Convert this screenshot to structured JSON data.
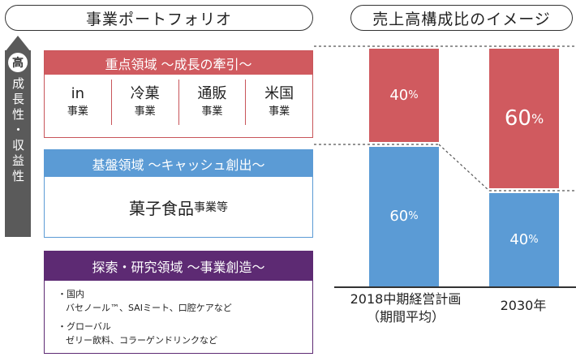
{
  "left_header": "事業ポートフォリオ",
  "right_header": "売上高構成比のイメージ",
  "axis": {
    "top": "高",
    "label": "成長性・収益性"
  },
  "sections": {
    "priority": {
      "title": "重点領域 ～成長の牽引～",
      "businesses": [
        {
          "name": "in",
          "suffix": "事業"
        },
        {
          "name": "冷菓",
          "suffix": "事業"
        },
        {
          "name": "通販",
          "suffix": "事業"
        },
        {
          "name": "米国",
          "suffix": "事業"
        }
      ],
      "color": "#d05a5f"
    },
    "base": {
      "title": "基盤領域 ～キャッシュ創出～",
      "main": "菓子食品",
      "main_suffix": "事業等",
      "color": "#5b9bd5"
    },
    "explore": {
      "title": "探索・研究領域 ～事業創造～",
      "items": [
        {
          "head": "・国内",
          "detail": "バセノール™、SAIミート、口腔ケアなど"
        },
        {
          "head": "・グローバル",
          "detail": "ゼリー飲料、コラーゲンドリンクなど"
        }
      ],
      "color": "#5d2a73"
    }
  },
  "chart_data": {
    "type": "bar",
    "stacked": true,
    "title": "売上高構成比のイメージ",
    "categories": [
      "2018中期経営計画（期間平均）",
      "2030年"
    ],
    "category_lines": [
      [
        "2018中期経営計画",
        "（期間平均）"
      ],
      [
        "2030年"
      ]
    ],
    "series": [
      {
        "name": "重点領域",
        "values": [
          40,
          60
        ],
        "color": "#d05a5f",
        "labels": [
          "40",
          "60"
        ]
      },
      {
        "name": "基盤領域",
        "values": [
          60,
          40
        ],
        "color": "#5b9bd5",
        "labels": [
          "60",
          "40"
        ]
      }
    ],
    "unit": "%",
    "ylim": [
      0,
      100
    ]
  }
}
